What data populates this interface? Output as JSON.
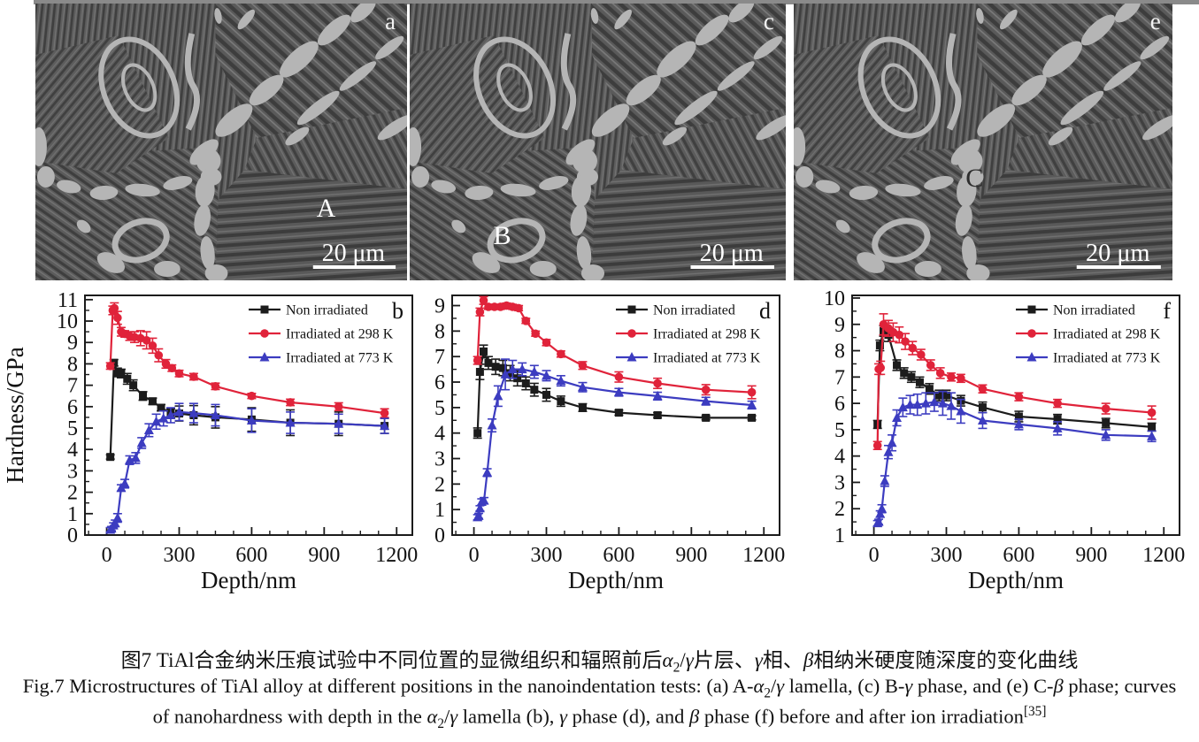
{
  "figure": {
    "panels": [
      {
        "label": "a",
        "position_letter": "A",
        "scalebar": "20 μm"
      },
      {
        "label": "c",
        "position_letter": "B",
        "scalebar": "20 μm"
      },
      {
        "label": "e",
        "position_letter": "C",
        "scalebar": "20 μm"
      }
    ]
  },
  "chart_data": [
    {
      "type": "line_errorbar",
      "panel": "b",
      "phase": "α2/γ lamella",
      "xlabel": "Depth/nm",
      "ylabel": "Hardness/GPa",
      "xlim": [
        -90,
        1265
      ],
      "ylim": [
        0,
        11.2
      ],
      "xticks": [
        0,
        300,
        600,
        900,
        1200
      ],
      "yticks": [
        0,
        1,
        2,
        3,
        4,
        5,
        6,
        7,
        8,
        9,
        10,
        11
      ],
      "x_minor_step": 75,
      "legend_position": "upper right",
      "series": [
        {
          "name": "Non irradiated",
          "color": "#1c1c1c",
          "marker": "square",
          "x": [
            15,
            30,
            45,
            60,
            85,
            110,
            150,
            190,
            225,
            265,
            300,
            360,
            450,
            600,
            760,
            960,
            1150
          ],
          "y": [
            3.65,
            8.05,
            7.6,
            7.55,
            7.3,
            7.0,
            6.5,
            6.25,
            5.95,
            5.7,
            5.68,
            5.6,
            5.5,
            5.4,
            5.25,
            5.2,
            5.1
          ],
          "err": [
            0.1,
            0.15,
            0.2,
            0.2,
            0.25,
            0.25,
            0.2,
            0.15,
            0.15,
            0.2,
            0.35,
            0.45,
            0.5,
            0.55,
            0.6,
            0.55,
            0.35
          ]
        },
        {
          "name": "Irradiated at 298 K",
          "color": "#e0233a",
          "marker": "circle",
          "x": [
            15,
            25,
            32,
            45,
            60,
            75,
            95,
            115,
            140,
            165,
            190,
            215,
            245,
            270,
            300,
            360,
            450,
            600,
            760,
            960,
            1150
          ],
          "y": [
            7.9,
            10.5,
            10.6,
            10.15,
            9.5,
            9.4,
            9.3,
            9.25,
            9.2,
            9.1,
            8.85,
            8.4,
            8.0,
            7.8,
            7.55,
            7.4,
            6.95,
            6.5,
            6.2,
            6.0,
            5.7
          ],
          "err": [
            0.15,
            0.2,
            0.25,
            0.3,
            0.2,
            0.15,
            0.2,
            0.25,
            0.35,
            0.4,
            0.35,
            0.3,
            0.2,
            0.15,
            0.15,
            0.15,
            0.15,
            0.12,
            0.15,
            0.18,
            0.2
          ]
        },
        {
          "name": "Irradiated at 773 K",
          "color": "#3c3cc0",
          "marker": "triangle",
          "x": [
            15,
            20,
            28,
            35,
            45,
            60,
            75,
            95,
            120,
            145,
            175,
            205,
            235,
            265,
            300,
            360,
            450,
            600,
            760,
            960,
            1150
          ],
          "y": [
            0.25,
            0.3,
            0.45,
            0.55,
            0.8,
            2.2,
            2.4,
            3.5,
            3.6,
            4.3,
            4.9,
            5.3,
            5.45,
            5.6,
            5.75,
            5.7,
            5.6,
            5.35,
            5.25,
            5.2,
            5.1
          ],
          "err": [
            0.1,
            0.1,
            0.12,
            0.15,
            0.2,
            0.15,
            0.2,
            0.2,
            0.25,
            0.25,
            0.3,
            0.35,
            0.35,
            0.35,
            0.4,
            0.45,
            0.5,
            0.55,
            0.5,
            0.45,
            0.35
          ]
        }
      ]
    },
    {
      "type": "line_errorbar",
      "panel": "d",
      "phase": "γ phase",
      "xlabel": "Depth/nm",
      "ylabel": "",
      "xlim": [
        -90,
        1265
      ],
      "ylim": [
        0,
        9.4
      ],
      "xticks": [
        0,
        300,
        600,
        900,
        1200
      ],
      "yticks": [
        0,
        1,
        2,
        3,
        4,
        5,
        6,
        7,
        8,
        9
      ],
      "x_minor_step": 75,
      "legend_position": "upper right",
      "series": [
        {
          "name": "Non irradiated",
          "color": "#1c1c1c",
          "marker": "square",
          "x": [
            15,
            25,
            40,
            60,
            90,
            120,
            150,
            180,
            215,
            250,
            300,
            360,
            450,
            600,
            760,
            960,
            1150
          ],
          "y": [
            4.0,
            6.4,
            7.2,
            6.75,
            6.6,
            6.55,
            6.35,
            6.15,
            5.95,
            5.7,
            5.5,
            5.25,
            5.0,
            4.8,
            4.7,
            4.6,
            4.6
          ],
          "err": [
            0.2,
            0.3,
            0.25,
            0.25,
            0.3,
            0.3,
            0.3,
            0.3,
            0.25,
            0.25,
            0.25,
            0.2,
            0.15,
            0.1,
            0.1,
            0.08,
            0.08
          ]
        },
        {
          "name": "Irradiated at 298 K",
          "color": "#e0233a",
          "marker": "circle",
          "x": [
            15,
            25,
            40,
            60,
            85,
            110,
            135,
            160,
            185,
            215,
            255,
            300,
            360,
            450,
            600,
            760,
            960,
            1150
          ],
          "y": [
            6.85,
            8.75,
            9.2,
            8.95,
            8.95,
            8.95,
            9.0,
            8.95,
            8.9,
            8.4,
            7.9,
            7.55,
            7.1,
            6.65,
            6.2,
            5.95,
            5.7,
            5.6
          ],
          "err": [
            0.15,
            0.15,
            0.15,
            0.1,
            0.1,
            0.1,
            0.1,
            0.1,
            0.1,
            0.1,
            0.1,
            0.12,
            0.12,
            0.15,
            0.2,
            0.2,
            0.2,
            0.25
          ]
        },
        {
          "name": "Irradiated at 773 K",
          "color": "#3c3cc0",
          "marker": "triangle",
          "x": [
            15,
            20,
            25,
            32,
            42,
            55,
            75,
            100,
            130,
            160,
            200,
            250,
            300,
            360,
            450,
            600,
            760,
            960,
            1150
          ],
          "y": [
            0.7,
            0.75,
            1.05,
            1.3,
            1.35,
            2.45,
            4.3,
            5.45,
            6.3,
            6.5,
            6.5,
            6.4,
            6.25,
            6.05,
            5.8,
            5.6,
            5.45,
            5.25,
            5.1
          ],
          "err": [
            0.1,
            0.1,
            0.1,
            0.12,
            0.12,
            0.15,
            0.25,
            0.4,
            0.6,
            0.35,
            0.25,
            0.25,
            0.2,
            0.2,
            0.18,
            0.15,
            0.15,
            0.15,
            0.15
          ]
        }
      ]
    },
    {
      "type": "line_errorbar",
      "panel": "f",
      "phase": "β phase",
      "xlabel": "Depth/nm",
      "ylabel": "",
      "xlim": [
        -90,
        1265
      ],
      "ylim": [
        1,
        10.1
      ],
      "xticks": [
        0,
        300,
        600,
        900,
        1200
      ],
      "yticks": [
        1,
        2,
        3,
        4,
        5,
        6,
        7,
        8,
        9,
        10
      ],
      "x_minor_step": 75,
      "legend_position": "upper right",
      "series": [
        {
          "name": "Non irradiated",
          "color": "#1c1c1c",
          "marker": "square",
          "x": [
            15,
            25,
            40,
            60,
            95,
            125,
            155,
            190,
            230,
            270,
            300,
            360,
            450,
            600,
            760,
            960,
            1150
          ],
          "y": [
            5.2,
            8.2,
            8.75,
            8.6,
            7.45,
            7.15,
            7.0,
            6.8,
            6.55,
            6.3,
            6.3,
            6.1,
            5.85,
            5.5,
            5.4,
            5.25,
            5.1
          ],
          "err": [
            0.15,
            0.2,
            0.2,
            0.25,
            0.2,
            0.2,
            0.2,
            0.2,
            0.2,
            0.2,
            0.2,
            0.2,
            0.2,
            0.2,
            0.18,
            0.18,
            0.15
          ]
        },
        {
          "name": "Irradiated at 298 K",
          "color": "#e0233a",
          "marker": "circle",
          "x": [
            15,
            20,
            28,
            40,
            60,
            80,
            105,
            130,
            160,
            195,
            235,
            275,
            320,
            360,
            450,
            600,
            760,
            960,
            1150
          ],
          "y": [
            4.4,
            7.3,
            7.35,
            9.0,
            8.85,
            8.7,
            8.6,
            8.35,
            8.1,
            7.85,
            7.45,
            7.15,
            7.0,
            6.95,
            6.55,
            6.25,
            6.0,
            5.8,
            5.65
          ],
          "err": [
            0.15,
            0.2,
            0.25,
            0.4,
            0.3,
            0.35,
            0.3,
            0.3,
            0.25,
            0.2,
            0.2,
            0.2,
            0.15,
            0.15,
            0.15,
            0.15,
            0.15,
            0.2,
            0.25
          ]
        },
        {
          "name": "Irradiated at 773 K",
          "color": "#3c3cc0",
          "marker": "triangle",
          "x": [
            15,
            20,
            26,
            33,
            45,
            60,
            75,
            95,
            120,
            150,
            180,
            215,
            250,
            285,
            320,
            360,
            450,
            600,
            760,
            960,
            1150
          ],
          "y": [
            1.45,
            1.5,
            1.8,
            2.0,
            3.05,
            4.15,
            4.5,
            5.45,
            5.85,
            5.95,
            5.95,
            6.0,
            6.05,
            6.0,
            5.9,
            5.7,
            5.35,
            5.2,
            5.05,
            4.8,
            4.75
          ],
          "err": [
            0.1,
            0.1,
            0.12,
            0.15,
            0.2,
            0.25,
            0.3,
            0.3,
            0.35,
            0.35,
            0.4,
            0.4,
            0.35,
            0.45,
            0.5,
            0.45,
            0.3,
            0.2,
            0.25,
            0.2,
            0.2
          ]
        }
      ]
    }
  ],
  "caption": {
    "zh": [
      {
        "t": "图7  TiAl合金纳米压痕试验中不同位置的显微组织和辐照前后"
      },
      {
        "t": "α",
        "i": 1
      },
      {
        "t": "2",
        "sub": 1
      },
      {
        "t": "/"
      },
      {
        "t": "γ",
        "i": 1
      },
      {
        "t": "片层、"
      },
      {
        "t": "γ",
        "i": 1
      },
      {
        "t": "相、"
      },
      {
        "t": "β",
        "i": 1
      },
      {
        "t": "相纳米硬度随深度的变化曲线"
      }
    ],
    "en_line1": [
      {
        "t": "Fig.7  Microstructures of TiAl alloy at different positions in the nanoindentation tests: (a) A-"
      },
      {
        "t": "α",
        "i": 1
      },
      {
        "t": "2",
        "sub": 1
      },
      {
        "t": "/"
      },
      {
        "t": "γ",
        "i": 1
      },
      {
        "t": " lamella, (c) B-"
      },
      {
        "t": "γ",
        "i": 1
      },
      {
        "t": " phase, and (e) C-"
      },
      {
        "t": "β",
        "i": 1
      },
      {
        "t": " phase; curves"
      }
    ],
    "en_line2": [
      {
        "t": "of nanohardness with depth in the "
      },
      {
        "t": "α",
        "i": 1
      },
      {
        "t": "2",
        "sub": 1
      },
      {
        "t": "/"
      },
      {
        "t": "γ",
        "i": 1
      },
      {
        "t": " lamella (b), "
      },
      {
        "t": "γ",
        "i": 1
      },
      {
        "t": " phase (d), and "
      },
      {
        "t": "β",
        "i": 1
      },
      {
        "t": " phase (f) before and after ion irradiation"
      },
      {
        "t": "[35]",
        "sup": 1
      }
    ]
  }
}
